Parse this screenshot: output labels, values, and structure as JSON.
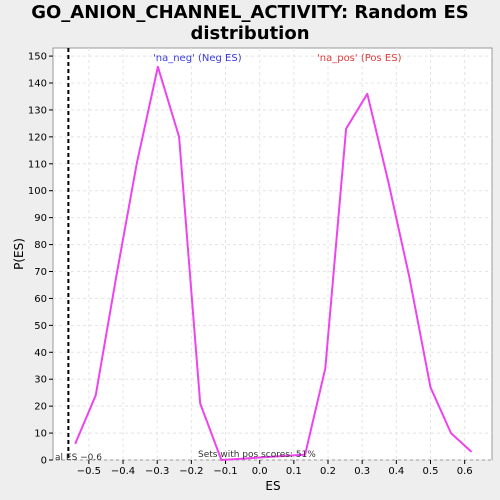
{
  "chart_data": {
    "type": "line",
    "title": "GO_ANION_CHANNEL_ACTIVITY: Random ES distribution",
    "xlabel": "ES",
    "ylabel": "P(ES)",
    "xlim": [
      -0.605,
      0.68
    ],
    "ylim": [
      0,
      153
    ],
    "x_ticks": [
      -0.5,
      -0.4,
      -0.3,
      -0.2,
      -0.1,
      0.0,
      0.1,
      0.2,
      0.3,
      0.4,
      0.5,
      0.6
    ],
    "x_tick_labels": [
      "−0.5",
      "−0.4",
      "−0.3",
      "−0.2",
      "−0.1",
      "0.0",
      "0.1",
      "0.2",
      "0.3",
      "0.4",
      "0.5",
      "0.6"
    ],
    "y_ticks": [
      0,
      10,
      20,
      30,
      40,
      50,
      60,
      70,
      80,
      90,
      100,
      110,
      120,
      130,
      140,
      150
    ],
    "y_tick_labels": [
      "0",
      "10",
      "20",
      "30",
      "40",
      "50",
      "60",
      "70",
      "80",
      "90",
      "100",
      "110",
      "120",
      "130",
      "140",
      "150"
    ],
    "grid": true,
    "series": [
      {
        "name": "",
        "color": "#ee44ee",
        "x": [
          -0.54,
          -0.48,
          -0.42,
          -0.36,
          -0.298,
          -0.236,
          -0.174,
          -0.112,
          0.133,
          0.192,
          0.253,
          0.315,
          0.377,
          0.438,
          0.5,
          0.56,
          0.62
        ],
        "y": [
          6,
          24,
          68,
          110,
          146,
          120,
          21,
          0,
          2,
          34,
          123,
          136,
          103,
          68,
          27,
          10,
          3
        ]
      }
    ],
    "legend": {
      "neg_label": "'na_neg' (Neg ES)",
      "neg_color": "#3a3ae0",
      "pos_label": "'na_pos' (Pos ES)",
      "pos_color": "#e03a3a"
    },
    "reference_line": {
      "x": -0.56,
      "style": "dashed",
      "color": "#000000"
    },
    "annotations": {
      "actual_es": "al ES −0.6",
      "pos_scores": "Sets with pos scores: 51%"
    }
  }
}
